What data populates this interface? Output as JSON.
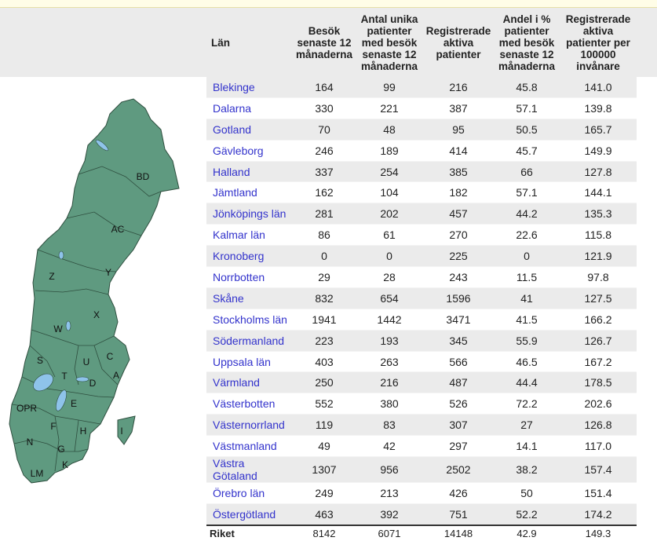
{
  "table": {
    "headers": [
      "Län",
      "Besök senaste 12 månaderna",
      "Antal unika patienter med besök senaste 12 månaderna",
      "Registrerade aktiva patienter",
      "Andel i % patienter med besök senaste 12 månaderna",
      "Registrerade aktiva patienter per 100000 invånare"
    ],
    "rows": [
      [
        "Blekinge",
        "164",
        "99",
        "216",
        "45.8",
        "141.0"
      ],
      [
        "Dalarna",
        "330",
        "221",
        "387",
        "57.1",
        "139.8"
      ],
      [
        "Gotland",
        "70",
        "48",
        "95",
        "50.5",
        "165.7"
      ],
      [
        "Gävleborg",
        "246",
        "189",
        "414",
        "45.7",
        "149.9"
      ],
      [
        "Halland",
        "337",
        "254",
        "385",
        "66",
        "127.8"
      ],
      [
        "Jämtland",
        "162",
        "104",
        "182",
        "57.1",
        "144.1"
      ],
      [
        "Jönköpings län",
        "281",
        "202",
        "457",
        "44.2",
        "135.3"
      ],
      [
        "Kalmar län",
        "86",
        "61",
        "270",
        "22.6",
        "115.8"
      ],
      [
        "Kronoberg",
        "0",
        "0",
        "225",
        "0",
        "121.9"
      ],
      [
        "Norrbotten",
        "29",
        "28",
        "243",
        "11.5",
        "97.8"
      ],
      [
        "Skåne",
        "832",
        "654",
        "1596",
        "41",
        "127.5"
      ],
      [
        "Stockholms län",
        "1941",
        "1442",
        "3471",
        "41.5",
        "166.2"
      ],
      [
        "Södermanland",
        "223",
        "193",
        "345",
        "55.9",
        "126.7"
      ],
      [
        "Uppsala län",
        "403",
        "263",
        "566",
        "46.5",
        "167.2"
      ],
      [
        "Värmland",
        "250",
        "216",
        "487",
        "44.4",
        "178.5"
      ],
      [
        "Västerbotten",
        "552",
        "380",
        "526",
        "72.2",
        "202.6"
      ],
      [
        "Västernorrland",
        "119",
        "83",
        "307",
        "27",
        "126.8"
      ],
      [
        "Västmanland",
        "49",
        "42",
        "297",
        "14.1",
        "117.0"
      ],
      [
        "Västra Götaland",
        "1307",
        "956",
        "2502",
        "38.2",
        "157.4"
      ],
      [
        "Örebro län",
        "249",
        "213",
        "426",
        "50",
        "151.4"
      ],
      [
        "Östergötland",
        "463",
        "392",
        "751",
        "52.2",
        "174.2"
      ]
    ],
    "total": [
      "Riket",
      "8142",
      "6071",
      "14148",
      "42.9",
      "149.3"
    ]
  },
  "map": {
    "region_codes": [
      "BD",
      "AC",
      "Z",
      "Y",
      "X",
      "W",
      "S",
      "T",
      "U",
      "C",
      "D",
      "A",
      "OPR",
      "E",
      "F",
      "H",
      "I",
      "N",
      "G",
      "K",
      "LM"
    ],
    "fill_color": "#5f9a80",
    "water_color": "#8ec3ea",
    "border_color": "#2f4f3f"
  }
}
